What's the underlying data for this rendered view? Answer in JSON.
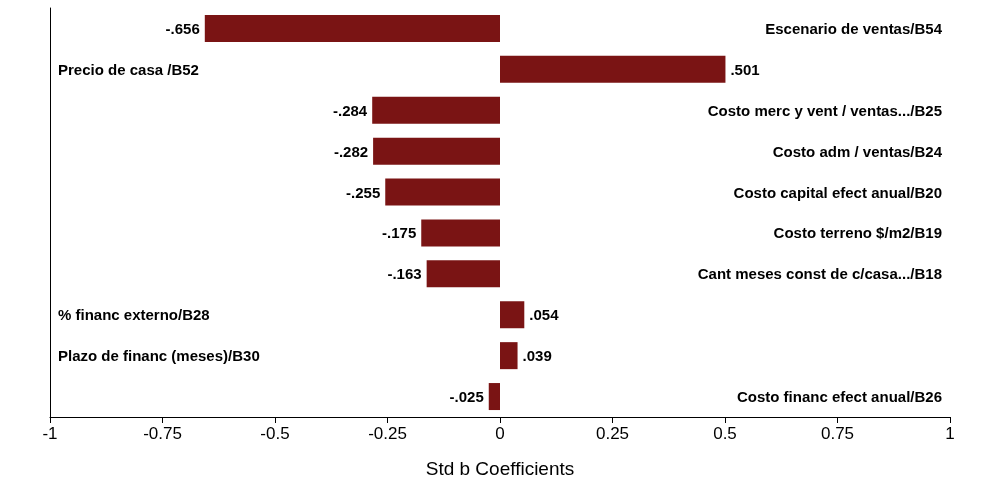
{
  "chart_data": {
    "type": "bar",
    "orientation": "horizontal",
    "xlabel": "Std b Coefficients",
    "categories": [
      "Escenario de ventas/B54",
      "Precio de casa /B52",
      "Costo merc y vent / ventas.../B25",
      "Costo adm / ventas/B24",
      "Costo capital efect anual/B20",
      "Costo terreno $/m2/B19",
      "Cant meses const de c/casa.../B18",
      "% financ externo/B28",
      "Plazo de financ (meses)/B30",
      "Costo financ efect anual/B26"
    ],
    "values": [
      -0.656,
      0.501,
      -0.284,
      -0.282,
      -0.255,
      -0.175,
      -0.163,
      0.054,
      0.039,
      -0.025
    ],
    "value_labels": [
      "-.656",
      ".501",
      "-.284",
      "-.282",
      "-.255",
      "-.175",
      "-.163",
      ".054",
      ".039",
      "-.025"
    ],
    "color": "#7a1414",
    "xlim": [
      -1,
      1
    ],
    "xticks": [
      -1,
      -0.75,
      -0.5,
      -0.25,
      0,
      0.25,
      0.5,
      0.75,
      1
    ]
  }
}
